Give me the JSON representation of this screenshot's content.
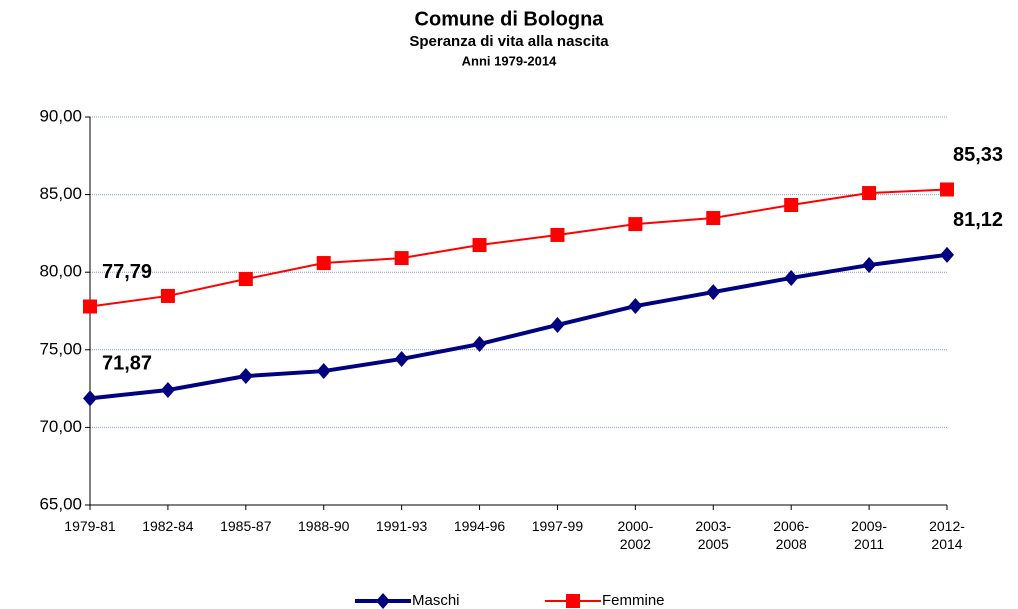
{
  "chart_data": {
    "type": "line",
    "title": "Comune di Bologna",
    "subtitle": "Speranza di vita alla nascita",
    "subtitle2": "Anni 1979-2014",
    "categories": [
      "1979-81",
      "1982-84",
      "1985-87",
      "1988-90",
      "1991-93",
      "1994-96",
      "1997-99",
      "2000-2002",
      "2003-2005",
      "2006-2008",
      "2009-2011",
      "2012-2014"
    ],
    "series": [
      {
        "name": "Maschi",
        "color": "#000080",
        "marker": "diamond",
        "values": [
          71.87,
          72.41,
          73.31,
          73.63,
          74.41,
          75.37,
          76.6,
          77.82,
          78.72,
          79.63,
          80.46,
          81.12
        ],
        "value_labels": [
          "71,87",
          null,
          null,
          null,
          null,
          null,
          null,
          null,
          null,
          null,
          null,
          "81,12"
        ]
      },
      {
        "name": "Femmine",
        "color": "#ff0000",
        "marker": "square",
        "values": [
          77.79,
          78.47,
          79.56,
          80.59,
          80.91,
          81.75,
          82.4,
          83.1,
          83.49,
          84.33,
          85.1,
          85.33
        ],
        "value_labels": [
          "77,79",
          null,
          null,
          null,
          null,
          null,
          null,
          null,
          null,
          null,
          null,
          "85,33"
        ]
      }
    ],
    "ylim": [
      65,
      90
    ],
    "yticks": [
      {
        "value": 65,
        "label": "65,00"
      },
      {
        "value": 70,
        "label": "70,00"
      },
      {
        "value": 75,
        "label": "75,00"
      },
      {
        "value": 80,
        "label": "80,00"
      },
      {
        "value": 85,
        "label": "85,00"
      },
      {
        "value": 90,
        "label": "90,00"
      }
    ],
    "grid": true,
    "legend": "bottom"
  }
}
